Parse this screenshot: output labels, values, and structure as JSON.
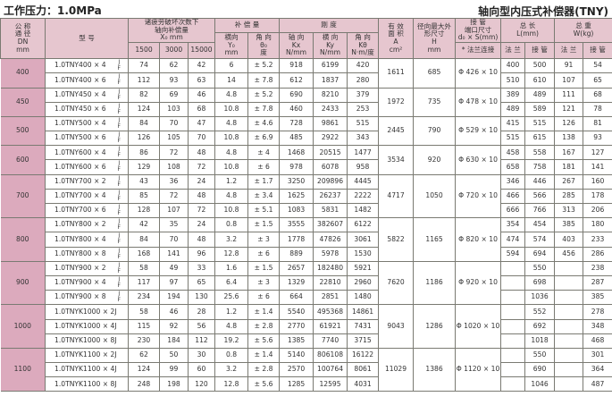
{
  "title_left": "工作压力：1.0MPa",
  "title_right": "轴向型内压式补偿器(TNY)",
  "header": {
    "dn": [
      "公 称",
      "通 径",
      "DN",
      "mm"
    ],
    "model": "型  号",
    "fatigue": [
      "诸疲劳破坏次数下",
      "轴向补偿量",
      "X₀   mm"
    ],
    "fatigue_cols": [
      "1500",
      "3000",
      "15000"
    ],
    "comp": "补 偿 量",
    "comp_y": [
      "横向",
      "Y₀",
      "mm"
    ],
    "comp_theta": [
      "角 向",
      "θ₀",
      "度"
    ],
    "stiff": "刚 度",
    "stiff_x": [
      "轴 向",
      "Kx",
      "N/mm"
    ],
    "stiff_y": [
      "横 向",
      "Ky",
      "N/mm"
    ],
    "stiff_theta": [
      "角 向",
      "Kθ",
      "N·m/度"
    ],
    "area": [
      "有 效",
      "面 积",
      "A",
      "cm²"
    ],
    "h": [
      "径向最大外",
      "形尺寸",
      "H",
      "mm"
    ],
    "pipe": [
      "接 管",
      "端口尺寸",
      "d₀ × S(mm)"
    ],
    "pipe_sub": "* 法兰连接",
    "length": [
      "总 长",
      "L(mm)"
    ],
    "weight": [
      "总 重",
      "W(kg)"
    ],
    "flange": "法 兰",
    "tube": "接 管"
  },
  "jf": [
    "J",
    "F"
  ],
  "groups": [
    {
      "dn": "400",
      "area": "1611",
      "h": "685",
      "pipe": "Φ 426 × 10",
      "rows": [
        [
          "1.0TNY400 × 4",
          true,
          "74",
          "62",
          "42",
          "6",
          "± 5.2",
          "918",
          "6199",
          "420",
          "400",
          "500",
          "91",
          "54"
        ],
        [
          "1.0TNY400 × 6",
          true,
          "112",
          "93",
          "63",
          "14",
          "± 7.8",
          "612",
          "1837",
          "280",
          "510",
          "610",
          "107",
          "65"
        ]
      ]
    },
    {
      "dn": "450",
      "area": "1972",
      "h": "735",
      "pipe": "Φ 478 × 10",
      "rows": [
        [
          "1.0TNY450 × 4",
          true,
          "82",
          "69",
          "46",
          "4.8",
          "± 5.2",
          "690",
          "8210",
          "379",
          "389",
          "489",
          "111",
          "68"
        ],
        [
          "1.0TNY450 × 6",
          true,
          "124",
          "103",
          "68",
          "10.8",
          "± 7.8",
          "460",
          "2433",
          "253",
          "489",
          "589",
          "121",
          "78"
        ]
      ]
    },
    {
      "dn": "500",
      "area": "2445",
      "h": "790",
      "pipe": "Φ 529 × 10",
      "rows": [
        [
          "1.0TNY500 × 4",
          true,
          "84",
          "70",
          "47",
          "4.8",
          "± 4.6",
          "728",
          "9861",
          "515",
          "415",
          "515",
          "126",
          "81"
        ],
        [
          "1.0TNY500 × 6",
          true,
          "126",
          "105",
          "70",
          "10.8",
          "± 6.9",
          "485",
          "2922",
          "343",
          "515",
          "615",
          "138",
          "93"
        ]
      ]
    },
    {
      "dn": "600",
      "area": "3534",
      "h": "920",
      "pipe": "Φ 630 × 10",
      "rows": [
        [
          "1.0TNY600 × 4",
          true,
          "86",
          "72",
          "48",
          "4.8",
          "± 4",
          "1468",
          "20515",
          "1477",
          "458",
          "558",
          "167",
          "127"
        ],
        [
          "1.0TNY600 × 6",
          true,
          "129",
          "108",
          "72",
          "10.8",
          "± 6",
          "978",
          "6078",
          "958",
          "658",
          "758",
          "181",
          "141"
        ]
      ]
    },
    {
      "dn": "700",
      "area": "4717",
      "h": "1050",
      "pipe": "Φ 720 × 10",
      "rows": [
        [
          "1.0TNY700 × 2",
          true,
          "43",
          "36",
          "24",
          "1.2",
          "± 1.7",
          "3250",
          "209896",
          "4445",
          "346",
          "446",
          "267",
          "160"
        ],
        [
          "1.0TNY700 × 4",
          true,
          "85",
          "72",
          "48",
          "4.8",
          "± 3.4",
          "1625",
          "26237",
          "2222",
          "466",
          "566",
          "285",
          "178"
        ],
        [
          "1.0TNY700 × 6",
          true,
          "128",
          "107",
          "72",
          "10.8",
          "± 5.1",
          "1083",
          "5831",
          "1482",
          "666",
          "766",
          "313",
          "206"
        ]
      ]
    },
    {
      "dn": "800",
      "area": "5822",
      "h": "1165",
      "pipe": "Φ 820 × 10",
      "rows": [
        [
          "1.0TNY800 × 2",
          true,
          "42",
          "35",
          "24",
          "0.8",
          "± 1.5",
          "3555",
          "382607",
          "6122",
          "354",
          "454",
          "385",
          "180"
        ],
        [
          "1.0TNY800 × 4",
          true,
          "84",
          "70",
          "48",
          "3.2",
          "± 3",
          "1778",
          "47826",
          "3061",
          "474",
          "574",
          "403",
          "233"
        ],
        [
          "1.0TNY800 × 8",
          true,
          "168",
          "141",
          "96",
          "12.8",
          "± 6",
          "889",
          "5978",
          "1530",
          "594",
          "694",
          "456",
          "286"
        ]
      ]
    },
    {
      "dn": "900",
      "area": "7620",
      "h": "1186",
      "pipe": "Φ 920 × 10",
      "rows": [
        [
          "1.0TNY900 × 2",
          true,
          "58",
          "49",
          "33",
          "1.6",
          "± 1.5",
          "2657",
          "182480",
          "5921",
          "",
          "550",
          "",
          "238"
        ],
        [
          "1.0TNY900 × 4",
          true,
          "117",
          "97",
          "65",
          "6.4",
          "± 3",
          "1329",
          "22810",
          "2960",
          "",
          "698",
          "",
          "287"
        ],
        [
          "1.0TNY900 × 8",
          true,
          "234",
          "194",
          "130",
          "25.6",
          "± 6",
          "664",
          "2851",
          "1480",
          "",
          "1036",
          "",
          "385"
        ]
      ]
    },
    {
      "dn": "1000",
      "area": "9043",
      "h": "1286",
      "pipe": "Φ 1020 × 10",
      "rows": [
        [
          "1.0TNYK1000 × 2J",
          false,
          "58",
          "46",
          "28",
          "1.2",
          "± 1.4",
          "5540",
          "495368",
          "14861",
          "",
          "552",
          "",
          "278"
        ],
        [
          "1.0TNYK1000 × 4J",
          false,
          "115",
          "92",
          "56",
          "4.8",
          "± 2.8",
          "2770",
          "61921",
          "7431",
          "",
          "692",
          "",
          "348"
        ],
        [
          "1.0TNYK1000 × 8J",
          false,
          "230",
          "184",
          "112",
          "19.2",
          "± 5.6",
          "1385",
          "7740",
          "3715",
          "",
          "1018",
          "",
          "468"
        ]
      ]
    },
    {
      "dn": "1100",
      "area": "11029",
      "h": "1386",
      "pipe": "Φ 1120 × 10",
      "rows": [
        [
          "1.0TNYK1100 × 2J",
          false,
          "62",
          "50",
          "30",
          "0.8",
          "± 1.4",
          "5140",
          "806108",
          "16122",
          "",
          "550",
          "",
          "301"
        ],
        [
          "1.0TNYK1100 × 4J",
          false,
          "124",
          "99",
          "60",
          "3.2",
          "± 2.8",
          "2570",
          "100764",
          "8061",
          "",
          "690",
          "",
          "364"
        ],
        [
          "1.0TNYK1100 × 8J",
          false,
          "248",
          "198",
          "120",
          "12.8",
          "± 5.6",
          "1285",
          "12595",
          "4031",
          "",
          "1046",
          "",
          "487"
        ]
      ]
    }
  ]
}
